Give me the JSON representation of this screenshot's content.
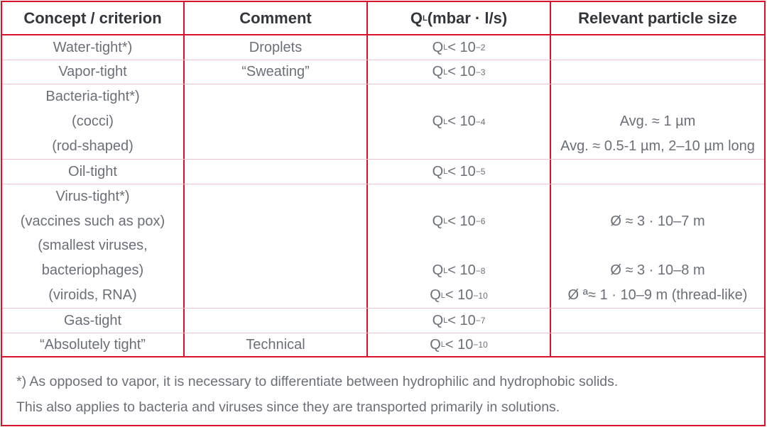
{
  "header": {
    "col0": "Concept / criterion",
    "col1": "Comment",
    "col2": {
      "q": "Q",
      "sub": "L",
      "rest": " (mbar · l/s)"
    },
    "col3": "Relevant particle size"
  },
  "colors": {
    "border": "#d8122a",
    "row_divider": "#f3c2ca",
    "text": "#6b6f78",
    "header_text": "#33363b"
  },
  "rows": [
    {
      "concept": [
        "Water-tight*)"
      ],
      "comment": [
        "Droplets"
      ],
      "ql": [
        {
          "q": "Q",
          "sub": "L",
          "rel": " < 10",
          "exp": "−2"
        }
      ],
      "size": [
        ""
      ]
    },
    {
      "concept": [
        "Vapor-tight"
      ],
      "comment": [
        "“Sweating”"
      ],
      "ql": [
        {
          "q": "Q",
          "sub": "L",
          "rel": " < 10",
          "exp": "−3"
        }
      ],
      "size": [
        ""
      ]
    },
    {
      "concept": [
        "Bacteria-tight*)",
        "(cocci)",
        "(rod-shaped)"
      ],
      "comment": [
        "",
        "",
        ""
      ],
      "ql": [
        null,
        {
          "q": "Q",
          "sub": "L",
          "rel": " < 10",
          "exp": "−4"
        },
        null
      ],
      "size": [
        "",
        "Avg. ≈ 1 µm",
        "Avg. ≈ 0.5-1 µm, 2–10 µm long"
      ]
    },
    {
      "concept": [
        "Oil-tight"
      ],
      "comment": [
        ""
      ],
      "ql": [
        {
          "q": "Q",
          "sub": "L",
          "rel": " < 10",
          "exp": "−5"
        }
      ],
      "size": [
        ""
      ]
    },
    {
      "concept": [
        "Virus-tight*)",
        "(vaccines such as pox)",
        "(smallest viruses,",
        "bacteriophages)",
        "(viroids, RNA)"
      ],
      "comment": [
        "",
        "",
        "",
        "",
        ""
      ],
      "ql": [
        null,
        {
          "q": "Q",
          "sub": "L",
          "rel": " < 10",
          "exp": "−6"
        },
        null,
        {
          "q": "Q",
          "sub": "L",
          "rel": " < 10",
          "exp": "−8"
        },
        {
          "q": "Q",
          "sub": "L",
          "rel": " < 10",
          "exp": "−10"
        }
      ],
      "size": [
        "",
        "Ø ≈ 3 · 10–7 m",
        "",
        "Ø ≈ 3 · 10–8 m",
        "Ø ª≈ 1 · 10–9 m (thread-like)"
      ]
    },
    {
      "concept": [
        "Gas-tight"
      ],
      "comment": [
        ""
      ],
      "ql": [
        {
          "q": "Q",
          "sub": "L",
          "rel": " < 10",
          "exp": "−7"
        }
      ],
      "size": [
        ""
      ]
    },
    {
      "concept": [
        "“Absolutely tight”"
      ],
      "comment": [
        "Technical"
      ],
      "ql": [
        {
          "q": "Q",
          "sub": "L",
          "rel": " < 10",
          "exp": "−10"
        }
      ],
      "size": [
        ""
      ]
    }
  ],
  "footnote": [
    "*) As opposed to vapor, it is necessary to differentiate between hydrophilic and hydrophobic solids.",
    "This also applies to bacteria and viruses since they are transported primarily in solutions."
  ]
}
